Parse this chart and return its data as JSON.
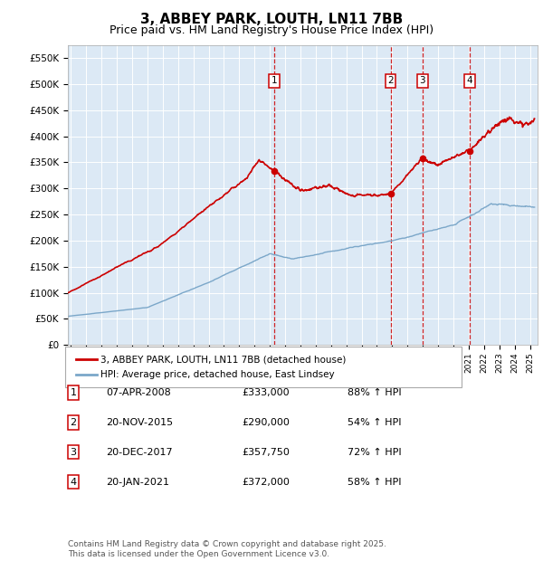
{
  "title": "3, ABBEY PARK, LOUTH, LN11 7BB",
  "subtitle": "Price paid vs. HM Land Registry's House Price Index (HPI)",
  "title_fontsize": 11,
  "subtitle_fontsize": 9,
  "background_color": "#ffffff",
  "plot_bg_color": "#dce9f5",
  "grid_color": "#ffffff",
  "red_line_color": "#cc0000",
  "blue_line_color": "#7ba7c9",
  "sale_dates": [
    2008.27,
    2015.89,
    2017.97,
    2021.05
  ],
  "sale_prices": [
    333000,
    290000,
    357750,
    372000
  ],
  "sale_labels": [
    "1",
    "2",
    "3",
    "4"
  ],
  "sale_info": [
    {
      "label": "1",
      "date": "07-APR-2008",
      "price": "£333,000",
      "pct": "88% ↑ HPI"
    },
    {
      "label": "2",
      "date": "20-NOV-2015",
      "price": "£290,000",
      "pct": "54% ↑ HPI"
    },
    {
      "label": "3",
      "date": "20-DEC-2017",
      "price": "£357,750",
      "pct": "72% ↑ HPI"
    },
    {
      "label": "4",
      "date": "20-JAN-2021",
      "price": "£372,000",
      "pct": "58% ↑ HPI"
    }
  ],
  "ylim": [
    0,
    575000
  ],
  "yticks": [
    0,
    50000,
    100000,
    150000,
    200000,
    250000,
    300000,
    350000,
    400000,
    450000,
    500000,
    550000
  ],
  "ytick_labels": [
    "£0",
    "£50K",
    "£100K",
    "£150K",
    "£200K",
    "£250K",
    "£300K",
    "£350K",
    "£400K",
    "£450K",
    "£500K",
    "£550K"
  ],
  "xmin": 1994.8,
  "xmax": 2025.5,
  "footer": "Contains HM Land Registry data © Crown copyright and database right 2025.\nThis data is licensed under the Open Government Licence v3.0.",
  "legend_entries": [
    "3, ABBEY PARK, LOUTH, LN11 7BB (detached house)",
    "HPI: Average price, detached house, East Lindsey"
  ]
}
